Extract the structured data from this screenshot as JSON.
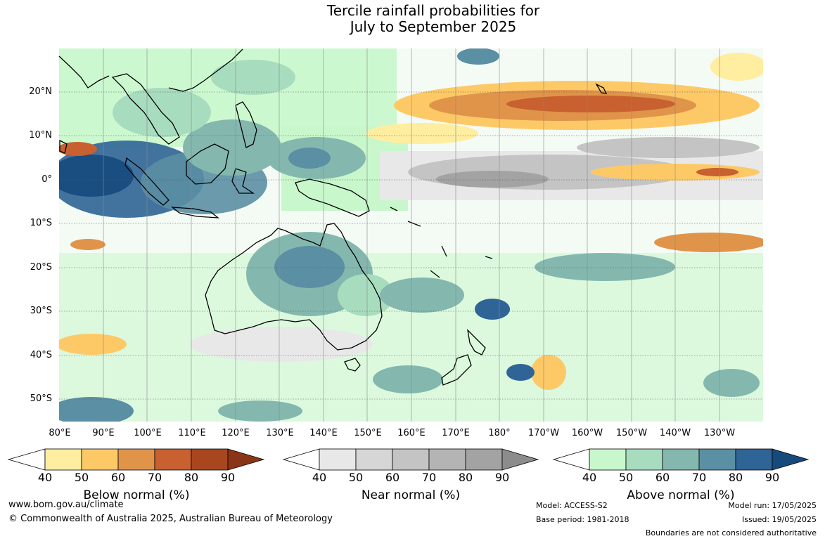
{
  "title_line1": "Tercile rainfall probabilities for",
  "title_line2": "July to September 2025",
  "lat_labels": [
    "20°N",
    "10°N",
    "0°",
    "10°S",
    "20°S",
    "30°S",
    "40°S",
    "50°S"
  ],
  "lon_labels": [
    "80°E",
    "90°E",
    "100°E",
    "110°E",
    "120°E",
    "130°E",
    "140°E",
    "150°E",
    "160°E",
    "170°E",
    "180°",
    "170°W",
    "160°W",
    "150°W",
    "140°W",
    "130°W"
  ],
  "colorbars": {
    "below": {
      "title": "Below normal (%)",
      "ticks": [
        "40",
        "50",
        "60",
        "70",
        "80",
        "90"
      ],
      "colors": [
        "#ffeda0",
        "#fdc967",
        "#e0944a",
        "#c8602f",
        "#a8471f",
        "#8a3518"
      ]
    },
    "near": {
      "title": "Near normal (%)",
      "ticks": [
        "40",
        "50",
        "60",
        "70",
        "80",
        "90"
      ],
      "colors": [
        "#e8e8e8",
        "#d6d6d6",
        "#c4c4c4",
        "#b4b4b4",
        "#a3a3a3",
        "#8c8c8c"
      ]
    },
    "above": {
      "title": "Above normal (%)",
      "ticks": [
        "40",
        "50",
        "60",
        "70",
        "80",
        "90"
      ],
      "colors": [
        "#c8f7cc",
        "#a8dcbe",
        "#84b8ae",
        "#5b8fa3",
        "#2f6496",
        "#174a7c"
      ]
    }
  },
  "footer": {
    "website": "www.bom.gov.au/climate",
    "copyright": "© Commonwealth of Australia 2025, Australian Bureau of Meteorology",
    "model": "Model: ACCESS-S2",
    "base_period": "Base period: 1981-2018",
    "model_run": "Model run: 17/05/2025",
    "issued": "Issued: 19/05/2025",
    "disclaimer": "Boundaries are not considered authoritative"
  }
}
